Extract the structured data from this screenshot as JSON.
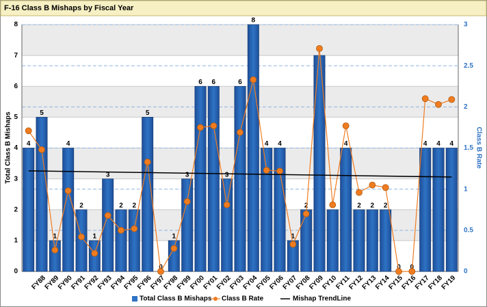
{
  "chart_data": {
    "type": "bar",
    "title": "F-16 Class B Mishaps by Fiscal Year",
    "y_label": "Total Class B Mishaps",
    "y2_label": "Class B Rate",
    "categories": [
      null,
      "FY88",
      "FY89",
      "FY90",
      "FY91",
      "FY92",
      "FY93",
      "FY94",
      "FY95",
      "FY96",
      "FY97",
      "FY98",
      "FY99",
      "FY00",
      "FY01",
      "FY02",
      "FY03",
      "FY04",
      "FY05",
      "FY06",
      "FY07",
      "FY08",
      "FY09",
      "FY10",
      "FY11",
      "FY12",
      "FY13",
      "FY14",
      "FY15",
      "FY16",
      "FY17",
      "FY18",
      "FY19"
    ],
    "series": [
      {
        "name": "Total Class B Mishaps",
        "color": "#2f73c4",
        "values": [
          4,
          5,
          1,
          4,
          2,
          1,
          3,
          2,
          2,
          5,
          0,
          1,
          3,
          6,
          6,
          3,
          6,
          8,
          4,
          4,
          1,
          2,
          7,
          2,
          4,
          2,
          2,
          2,
          0,
          0,
          4,
          4,
          4
        ]
      },
      {
        "name": "Class B Rate",
        "color": "#f07c20",
        "axis": "y2",
        "values": [
          1.71,
          1.48,
          0.26,
          0.98,
          0.42,
          0.22,
          0.68,
          0.5,
          0.52,
          1.33,
          0,
          0.28,
          0.85,
          1.75,
          1.77,
          0.81,
          1.69,
          2.33,
          1.23,
          1.22,
          0.33,
          0.7,
          2.71,
          0.81,
          1.77,
          0.96,
          1.05,
          1.02,
          0,
          0,
          2.1,
          2.03,
          2.09
        ]
      }
    ],
    "trendline": {
      "name": "Mishap TrendLine",
      "color": "#000000",
      "start": 3.26,
      "end": 3.06
    },
    "ylim": [
      0,
      8
    ],
    "yticks": [
      0,
      1,
      2,
      3,
      4,
      5,
      6,
      7,
      8
    ],
    "y2lim": [
      0,
      3
    ],
    "y2ticks": [
      0,
      0.5,
      1,
      1.5,
      2,
      2.5,
      3
    ],
    "grid": true,
    "legend": "bottom"
  }
}
